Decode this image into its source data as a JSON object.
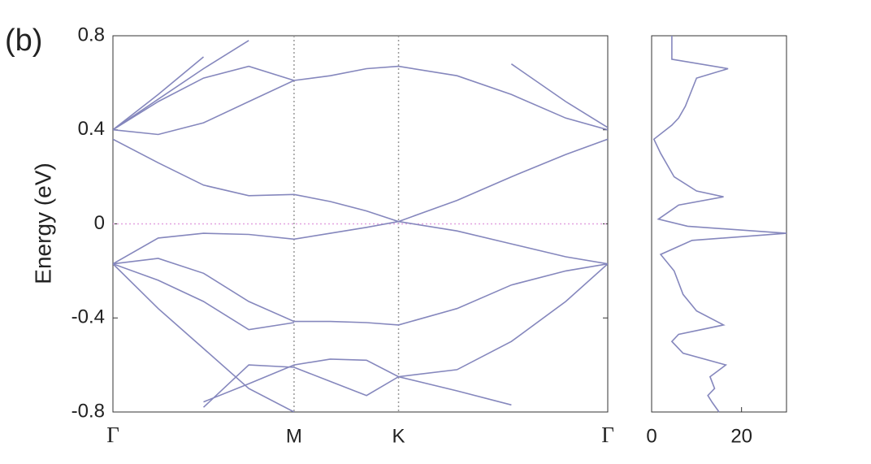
{
  "chart_data": [
    {
      "type": "line",
      "title": "(b)",
      "ylabel": "Energy (eV)",
      "color": "#8587bd",
      "x": [
        0,
        0.25,
        0.5,
        0.75,
        1,
        1.2,
        1.4,
        1.577,
        1.9,
        2.2,
        2.5,
        2.732
      ],
      "xlim": [
        0,
        2.732
      ],
      "xticks": [
        {
          "value": 0,
          "label": "Γ"
        },
        {
          "value": 1,
          "label": "M"
        },
        {
          "value": 1.577,
          "label": "K"
        },
        {
          "value": 2.732,
          "label": "Γ"
        }
      ],
      "xgrid": true,
      "ylim": [
        -0.8,
        0.8
      ],
      "yticks": [
        -0.8,
        -0.4,
        0,
        0.4,
        0.8
      ],
      "hline": 0,
      "hline_color": "#e2a3e0",
      "series": [
        {
          "values": [
            -0.17,
            -0.06,
            -0.04,
            -0.045,
            -0.065,
            -0.04,
            -0.015,
            0.01,
            -0.03,
            -0.085,
            -0.14,
            -0.17
          ]
        },
        {
          "values": [
            0.36,
            0.26,
            0.165,
            0.12,
            0.125,
            0.095,
            0.055,
            0.01,
            0.1,
            0.2,
            0.295,
            0.36
          ]
        },
        {
          "values": [
            -0.17,
            -0.147,
            -0.21,
            -0.33,
            -0.415,
            -0.415,
            -0.42,
            -0.43,
            -0.36,
            -0.26,
            -0.2,
            -0.17
          ]
        },
        {
          "values": [
            -0.17,
            -0.24,
            -0.33,
            -0.45,
            -0.42,
            null,
            null,
            null,
            null,
            null,
            null,
            null
          ]
        },
        {
          "values": [
            -0.17,
            -0.36,
            -0.53,
            -0.7,
            -0.8,
            null,
            null,
            null,
            null,
            null,
            null,
            null
          ]
        },
        {
          "values": [
            null,
            null,
            -0.757,
            -0.68,
            -0.6,
            -0.575,
            -0.58,
            -0.65,
            -0.71,
            -0.77,
            null,
            null
          ]
        },
        {
          "values": [
            null,
            null,
            -0.78,
            -0.6,
            -0.61,
            -0.67,
            -0.73,
            -0.65,
            -0.62,
            -0.5,
            -0.33,
            -0.17
          ]
        },
        {
          "values": [
            0.4,
            0.38,
            0.43,
            0.52,
            0.61,
            0.63,
            0.66,
            0.67,
            0.63,
            0.55,
            0.45,
            0.4
          ]
        },
        {
          "values": [
            0.4,
            0.52,
            0.62,
            0.67,
            0.61,
            null,
            null,
            null,
            null,
            null,
            null,
            null
          ]
        },
        {
          "values": [
            0.4,
            0.53,
            0.66,
            0.78,
            null,
            null,
            null,
            null,
            null,
            null,
            null,
            null
          ]
        },
        {
          "values": [
            0.4,
            0.55,
            0.71,
            null,
            null,
            null,
            null,
            null,
            null,
            null,
            null,
            null
          ]
        },
        {
          "values": [
            null,
            null,
            null,
            null,
            null,
            null,
            null,
            null,
            null,
            0.68,
            0.52,
            0.41
          ]
        }
      ]
    },
    {
      "type": "line",
      "orientation": "vertical",
      "color": "#8587bd",
      "xlim": [
        0,
        30
      ],
      "xticks": [
        0,
        20
      ],
      "ylim": [
        -0.8,
        0.8
      ],
      "y": [
        0.8,
        0.7,
        0.66,
        0.62,
        0.5,
        0.45,
        0.42,
        0.36,
        0.3,
        0.2,
        0.14,
        0.115,
        0.08,
        0.02,
        -0.01,
        -0.04,
        -0.07,
        -0.13,
        -0.2,
        -0.3,
        -0.37,
        -0.43,
        -0.47,
        -0.5,
        -0.55,
        -0.6,
        -0.65,
        -0.7,
        -0.73,
        -0.76,
        -0.8
      ],
      "values": [
        4.5,
        4.5,
        17,
        10,
        7.5,
        6,
        4.5,
        0.5,
        2,
        5,
        10,
        16,
        6,
        1.5,
        8,
        30,
        9,
        2,
        5,
        7,
        10,
        16,
        6,
        4.5,
        7,
        16.5,
        13,
        14,
        12.5,
        13.5,
        15
      ]
    }
  ]
}
